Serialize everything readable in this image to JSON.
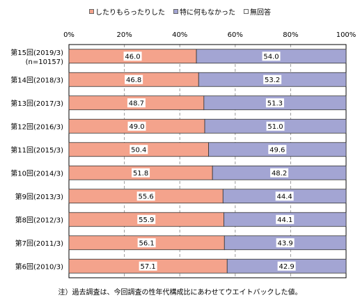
{
  "chart_data": {
    "type": "bar",
    "orientation": "horizontal",
    "stacked": true,
    "categories": [
      {
        "line1": "第15回(2019/3)",
        "line2": "(n=10157)"
      },
      {
        "line1": "第14回(2018/3)"
      },
      {
        "line1": "第13回(2017/3)"
      },
      {
        "line1": "第12回(2016/3)"
      },
      {
        "line1": "第11回(2015/3)"
      },
      {
        "line1": "第10回(2014/3)"
      },
      {
        "line1": "第9回(2013/3)"
      },
      {
        "line1": "第8回(2012/3)"
      },
      {
        "line1": "第7回(2011/3)"
      },
      {
        "line1": "第6回(2010/3)"
      }
    ],
    "series": [
      {
        "name": "したりもらったりした",
        "color": "#f4a38c",
        "values": [
          46.0,
          46.8,
          48.7,
          49.0,
          50.4,
          51.8,
          55.6,
          55.9,
          56.1,
          57.1
        ]
      },
      {
        "name": "特に何もなかった",
        "color": "#a3a5d3",
        "values": [
          54.0,
          53.2,
          51.3,
          51.0,
          49.6,
          48.2,
          44.4,
          44.1,
          43.9,
          42.9
        ]
      },
      {
        "name": "無回答",
        "color": "#ffffff",
        "values": [
          0,
          0,
          0,
          0,
          0,
          0,
          0,
          0,
          0,
          0
        ]
      }
    ],
    "value_labels": [
      [
        "46.0",
        "54.0"
      ],
      [
        "46.8",
        "53.2"
      ],
      [
        "48.7",
        "51.3"
      ],
      [
        "49.0",
        "51.0"
      ],
      [
        "50.4",
        "49.6"
      ],
      [
        "51.8",
        "48.2"
      ],
      [
        "55.6",
        "44.4"
      ],
      [
        "55.9",
        "44.1"
      ],
      [
        "56.1",
        "43.9"
      ],
      [
        "57.1",
        "42.9"
      ]
    ],
    "x_ticks": [
      "0%",
      "20%",
      "40%",
      "60%",
      "80%",
      "100%"
    ],
    "xlim": [
      0,
      100
    ],
    "legend_position": "top",
    "grid": true,
    "note": "注）過去調査は、今回調査の性年代構成比にあわせてウエイトバックした値。"
  }
}
